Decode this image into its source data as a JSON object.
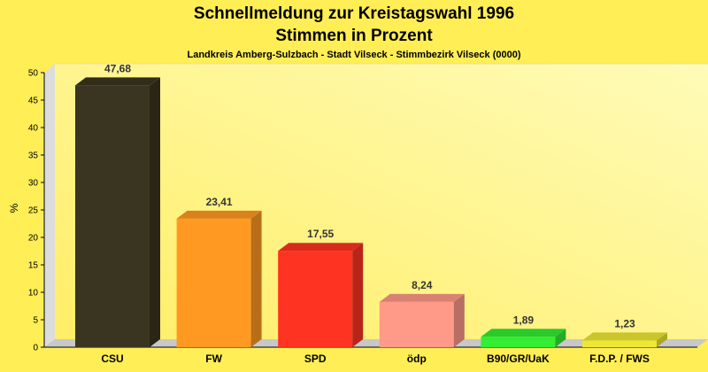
{
  "chart_data": {
    "type": "bar",
    "title": "Schnellmeldung zur Kreistagswahl 1996",
    "title2": "Stimmen in Prozent",
    "subtitle": "Landkreis Amberg-Sulzbach - Stadt Vilseck - Stimmbezirk Vilseck (0000)",
    "xlabel": "",
    "ylabel": "%",
    "ylim": [
      0,
      50
    ],
    "yticks": [
      0,
      5,
      10,
      15,
      20,
      25,
      30,
      35,
      40,
      45,
      50
    ],
    "grid": false,
    "categories": [
      "CSU",
      "FW",
      "SPD",
      "ödp",
      "B90/GR/UaK",
      "F.D.P. / FWS"
    ],
    "values": [
      47.68,
      23.41,
      17.55,
      8.24,
      1.89,
      1.23
    ],
    "value_labels": [
      "47,68",
      "23,41",
      "17,55",
      "8,24",
      "1,89",
      "1,23"
    ],
    "colors": [
      "#3A3520",
      "#FF9922",
      "#FF3322",
      "#FF9988",
      "#33EE33",
      "#EEE833"
    ],
    "background_color": "#FFEE55"
  }
}
